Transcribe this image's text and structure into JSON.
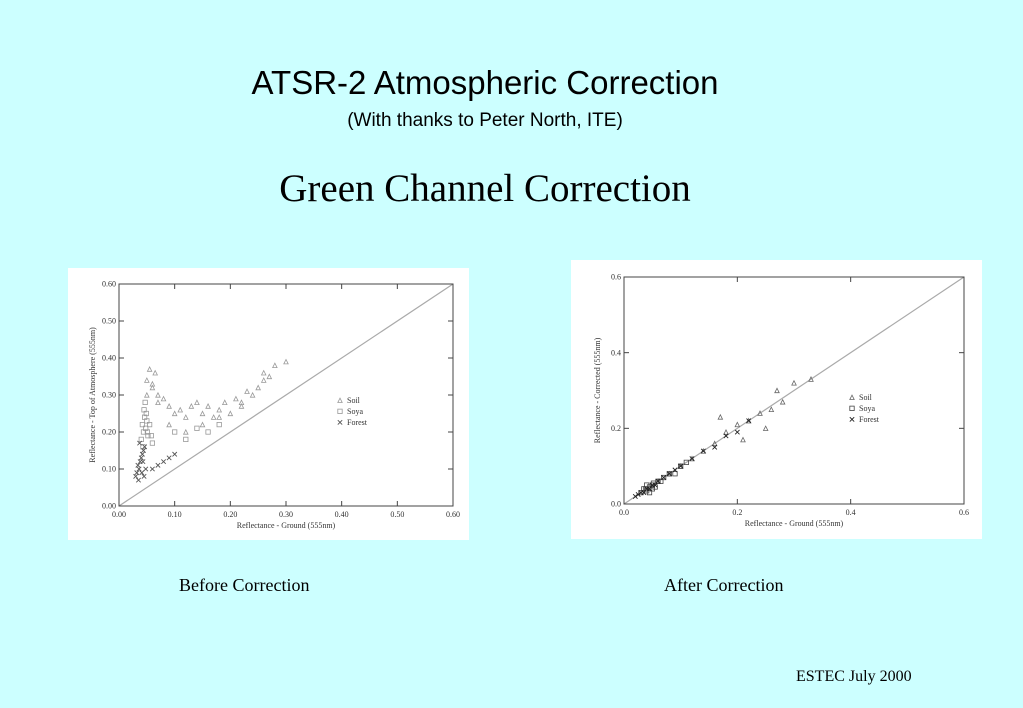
{
  "slide": {
    "title": "ATSR-2 Atmospheric Correction",
    "subtitle": "(With thanks to Peter North, ITE)",
    "section_title": "Green Channel Correction",
    "caption_before": "Before Correction",
    "caption_after": "After Correction",
    "footer": "ESTEC July 2000"
  },
  "chart_data": [
    {
      "type": "scatter",
      "xlabel": "Reflectance - Ground (555nm)",
      "ylabel": "Reflectance - Top of Atmosphere (555nm)",
      "xlim": [
        0,
        0.6
      ],
      "ylim": [
        0,
        0.6
      ],
      "x_ticks": [
        "0.00",
        "0.10",
        "0.20",
        "0.30",
        "0.40",
        "0.50",
        "0.60"
      ],
      "y_ticks": [
        "0.00",
        "0.10",
        "0.20",
        "0.30",
        "0.40",
        "0.50",
        "0.60"
      ],
      "reference_line": "1:1",
      "legend_position": "right",
      "series": [
        {
          "name": "Soil",
          "marker": "triangle",
          "color": "#999999",
          "x": [
            0.05,
            0.055,
            0.06,
            0.065,
            0.07,
            0.08,
            0.09,
            0.1,
            0.11,
            0.12,
            0.13,
            0.14,
            0.15,
            0.16,
            0.17,
            0.18,
            0.19,
            0.2,
            0.21,
            0.22,
            0.23,
            0.24,
            0.25,
            0.26,
            0.27,
            0.28,
            0.3,
            0.05,
            0.06,
            0.07,
            0.09,
            0.12,
            0.15,
            0.18,
            0.22,
            0.26
          ],
          "y": [
            0.34,
            0.37,
            0.32,
            0.36,
            0.3,
            0.29,
            0.27,
            0.25,
            0.26,
            0.24,
            0.27,
            0.28,
            0.25,
            0.27,
            0.24,
            0.26,
            0.28,
            0.25,
            0.29,
            0.27,
            0.31,
            0.3,
            0.32,
            0.34,
            0.35,
            0.38,
            0.39,
            0.3,
            0.33,
            0.28,
            0.22,
            0.2,
            0.22,
            0.24,
            0.28,
            0.36
          ]
        },
        {
          "name": "Soya",
          "marker": "square",
          "color": "#999999",
          "x": [
            0.04,
            0.042,
            0.044,
            0.046,
            0.048,
            0.05,
            0.052,
            0.045,
            0.047,
            0.049,
            0.051,
            0.043,
            0.055,
            0.058,
            0.06,
            0.1,
            0.12,
            0.14,
            0.16,
            0.18
          ],
          "y": [
            0.18,
            0.22,
            0.2,
            0.24,
            0.21,
            0.23,
            0.19,
            0.26,
            0.28,
            0.25,
            0.2,
            0.16,
            0.22,
            0.19,
            0.17,
            0.2,
            0.18,
            0.21,
            0.2,
            0.22
          ]
        },
        {
          "name": "Forest",
          "marker": "cross",
          "color": "#555555",
          "x": [
            0.03,
            0.032,
            0.034,
            0.036,
            0.038,
            0.04,
            0.042,
            0.044,
            0.046,
            0.048,
            0.035,
            0.037,
            0.041,
            0.043,
            0.045,
            0.06,
            0.07,
            0.08,
            0.09,
            0.1
          ],
          "y": [
            0.08,
            0.09,
            0.11,
            0.1,
            0.12,
            0.13,
            0.14,
            0.15,
            0.16,
            0.1,
            0.07,
            0.17,
            0.09,
            0.12,
            0.08,
            0.1,
            0.11,
            0.12,
            0.13,
            0.14
          ]
        }
      ]
    },
    {
      "type": "scatter",
      "xlabel": "Reflectance - Ground (555nm)",
      "ylabel": "Reflectance - Corrected (555nm)",
      "xlim": [
        0,
        0.6
      ],
      "ylim": [
        0,
        0.6
      ],
      "x_ticks": [
        "0.0",
        "0.2",
        "0.4",
        "0.6"
      ],
      "y_ticks": [
        "0.0",
        "0.2",
        "0.4",
        "0.6"
      ],
      "reference_line": "1:1",
      "legend_position": "right",
      "series": [
        {
          "name": "Soil",
          "marker": "triangle",
          "color": "#666666",
          "x": [
            0.06,
            0.08,
            0.1,
            0.12,
            0.14,
            0.16,
            0.18,
            0.2,
            0.22,
            0.24,
            0.26,
            0.28,
            0.3,
            0.33,
            0.17,
            0.21,
            0.25,
            0.27
          ],
          "y": [
            0.06,
            0.08,
            0.1,
            0.12,
            0.14,
            0.16,
            0.19,
            0.21,
            0.22,
            0.24,
            0.25,
            0.27,
            0.32,
            0.33,
            0.23,
            0.17,
            0.2,
            0.3
          ]
        },
        {
          "name": "Soya",
          "marker": "square",
          "color": "#444444",
          "x": [
            0.03,
            0.035,
            0.04,
            0.045,
            0.05,
            0.055,
            0.06,
            0.04,
            0.045,
            0.05,
            0.038,
            0.052,
            0.065,
            0.07,
            0.08,
            0.09,
            0.1,
            0.11
          ],
          "y": [
            0.03,
            0.04,
            0.035,
            0.045,
            0.05,
            0.045,
            0.06,
            0.05,
            0.03,
            0.04,
            0.04,
            0.055,
            0.06,
            0.07,
            0.08,
            0.08,
            0.1,
            0.11
          ]
        },
        {
          "name": "Forest",
          "marker": "cross",
          "color": "#222222",
          "x": [
            0.02,
            0.025,
            0.03,
            0.035,
            0.04,
            0.045,
            0.05,
            0.055,
            0.06,
            0.07,
            0.08,
            0.09,
            0.1,
            0.12,
            0.14,
            0.16,
            0.18,
            0.2,
            0.22
          ],
          "y": [
            0.02,
            0.025,
            0.03,
            0.03,
            0.04,
            0.04,
            0.05,
            0.05,
            0.06,
            0.07,
            0.08,
            0.09,
            0.1,
            0.12,
            0.14,
            0.15,
            0.18,
            0.19,
            0.22
          ]
        }
      ]
    }
  ]
}
